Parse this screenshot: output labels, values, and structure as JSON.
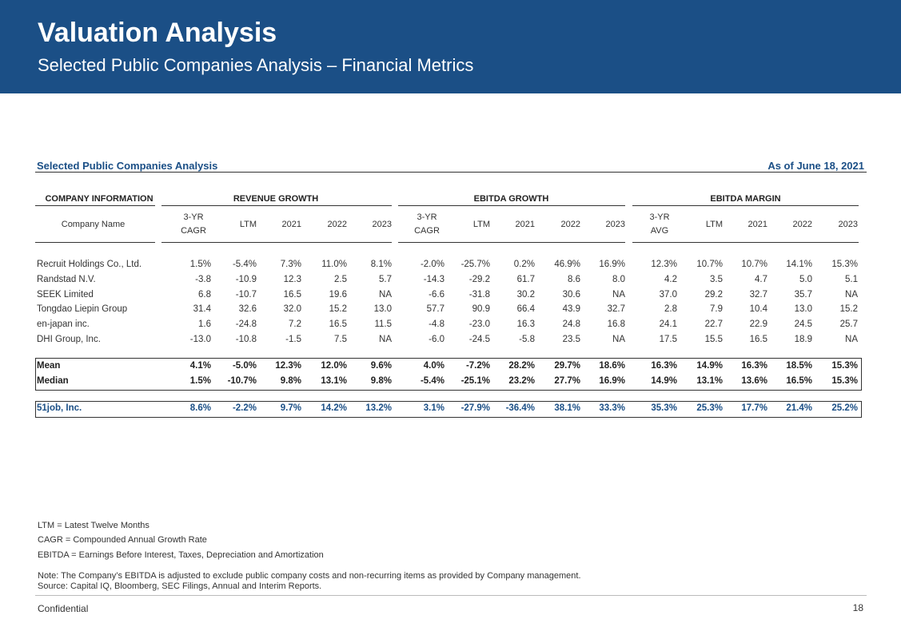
{
  "header": {
    "title": "Valuation Analysis",
    "subtitle": "Selected Public Companies Analysis – Financial Metrics"
  },
  "section": {
    "title": "Selected Public Companies Analysis",
    "as_of": "As of June 18, 2021"
  },
  "groups": {
    "company_info": "COMPANY INFORMATION",
    "revenue_growth": "REVENUE GROWTH",
    "ebitda_growth": "EBITDA GROWTH",
    "ebitda_margin": "EBITDA MARGIN"
  },
  "columns": {
    "company_name": "Company Name",
    "rev": [
      [
        "3-YR",
        "CAGR"
      ],
      [
        "LTM"
      ],
      [
        "2021"
      ],
      [
        "2022"
      ],
      [
        "2023"
      ]
    ],
    "ebg": [
      [
        "3-YR",
        "CAGR"
      ],
      [
        "LTM"
      ],
      [
        "2021"
      ],
      [
        "2022"
      ],
      [
        "2023"
      ]
    ],
    "ebm": [
      [
        "3-YR",
        "AVG"
      ],
      [
        "LTM"
      ],
      [
        "2021"
      ],
      [
        "2022"
      ],
      [
        "2023"
      ]
    ]
  },
  "companies": [
    [
      "Recruit Holdings Co., Ltd.",
      "1.5%",
      "-5.4%",
      "7.3%",
      "11.0%",
      "8.1%",
      "-2.0%",
      "-25.7%",
      "0.2%",
      "46.9%",
      "16.9%",
      "12.3%",
      "10.7%",
      "10.7%",
      "14.1%",
      "15.3%"
    ],
    [
      "Randstad N.V.",
      "-3.8",
      "-10.9",
      "12.3",
      "2.5",
      "5.7",
      "-14.3",
      "-29.2",
      "61.7",
      "8.6",
      "8.0",
      "4.2",
      "3.5",
      "4.7",
      "5.0",
      "5.1"
    ],
    [
      "SEEK Limited",
      "6.8",
      "-10.7",
      "16.5",
      "19.6",
      "NA",
      "-6.6",
      "-31.8",
      "30.2",
      "30.6",
      "NA",
      "37.0",
      "29.2",
      "32.7",
      "35.7",
      "NA"
    ],
    [
      "Tongdao Liepin Group",
      "31.4",
      "32.6",
      "32.0",
      "15.2",
      "13.0",
      "57.7",
      "90.9",
      "66.4",
      "43.9",
      "32.7",
      "2.8",
      "7.9",
      "10.4",
      "13.0",
      "15.2"
    ],
    [
      "en-japan inc.",
      "1.6",
      "-24.8",
      "7.2",
      "16.5",
      "11.5",
      "-4.8",
      "-23.0",
      "16.3",
      "24.8",
      "16.8",
      "24.1",
      "22.7",
      "22.9",
      "24.5",
      "25.7"
    ],
    [
      "DHI Group, Inc.",
      "-13.0",
      "-10.8",
      "-1.5",
      "7.5",
      "NA",
      "-6.0",
      "-24.5",
      "-5.8",
      "23.5",
      "NA",
      "17.5",
      "15.5",
      "16.5",
      "18.9",
      "NA"
    ]
  ],
  "stats": [
    [
      "Mean",
      "4.1%",
      "-5.0%",
      "12.3%",
      "12.0%",
      "9.6%",
      "4.0%",
      "-7.2%",
      "28.2%",
      "29.7%",
      "18.6%",
      "16.3%",
      "14.9%",
      "16.3%",
      "18.5%",
      "15.3%"
    ],
    [
      "Median",
      "1.5%",
      "-10.7%",
      "9.8%",
      "13.1%",
      "9.8%",
      "-5.4%",
      "-25.1%",
      "23.2%",
      "27.7%",
      "16.9%",
      "14.9%",
      "13.1%",
      "13.6%",
      "16.5%",
      "15.3%"
    ]
  ],
  "target": [
    "51job, Inc.",
    "8.6%",
    "-2.2%",
    "9.7%",
    "14.2%",
    "13.2%",
    "3.1%",
    "-27.9%",
    "-36.4%",
    "38.1%",
    "33.3%",
    "35.3%",
    "25.3%",
    "17.7%",
    "21.4%",
    "25.2%"
  ],
  "footnotes": {
    "ltm": "LTM = Latest Twelve Months",
    "cagr": "CAGR = Compounded Annual Growth Rate",
    "ebitda": "EBITDA = Earnings Before Interest, Taxes, Depreciation and Amortization",
    "note": "Note: The Company’s EBITDA is adjusted to exclude public company costs and non-recurring items as provided by Company management.",
    "source": "Source: Capital IQ, Bloomberg, SEC Filings, Annual and Interim Reports."
  },
  "footer": {
    "confidential": "Confidential",
    "page": "18"
  }
}
